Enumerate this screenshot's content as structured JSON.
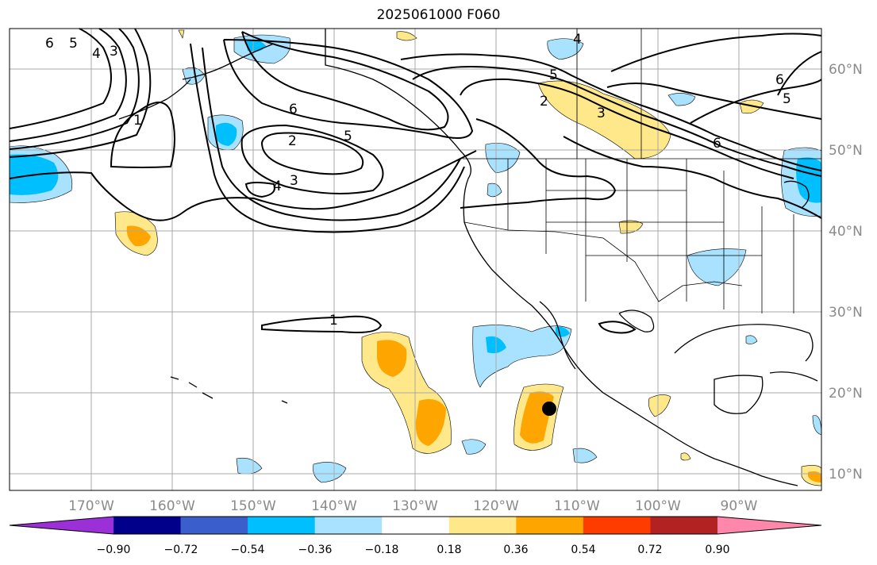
{
  "title": "2025061000 F060",
  "lon_labels": [
    "170°W",
    "160°W",
    "150°W",
    "140°W",
    "130°W",
    "120°W",
    "110°W",
    "100°W",
    "90°W"
  ],
  "lat_labels": [
    "60°N",
    "50°N",
    "40°N",
    "30°N",
    "20°N",
    "10°N"
  ],
  "colorbar": {
    "colors": [
      "#9b30d9",
      "#00008b",
      "#3a5fcd",
      "#00bfff",
      "#a8e2ff",
      "#ffffff",
      "#ffe88a",
      "#ffa500",
      "#ff3c00",
      "#b22222",
      "#ff87ac"
    ],
    "tick_labels": [
      "−0.90",
      "−0.72",
      "−0.54",
      "−0.36",
      "−0.18",
      "0.18",
      "0.36",
      "0.54",
      "0.72",
      "0.90"
    ]
  },
  "contour_labels": [
    "6",
    "5",
    "4",
    "3",
    "2",
    "3",
    "4",
    "5",
    "6",
    "1",
    "2",
    "3",
    "4",
    "5",
    "6",
    "6",
    "5",
    "1"
  ],
  "marker": "storm-center-dot"
}
